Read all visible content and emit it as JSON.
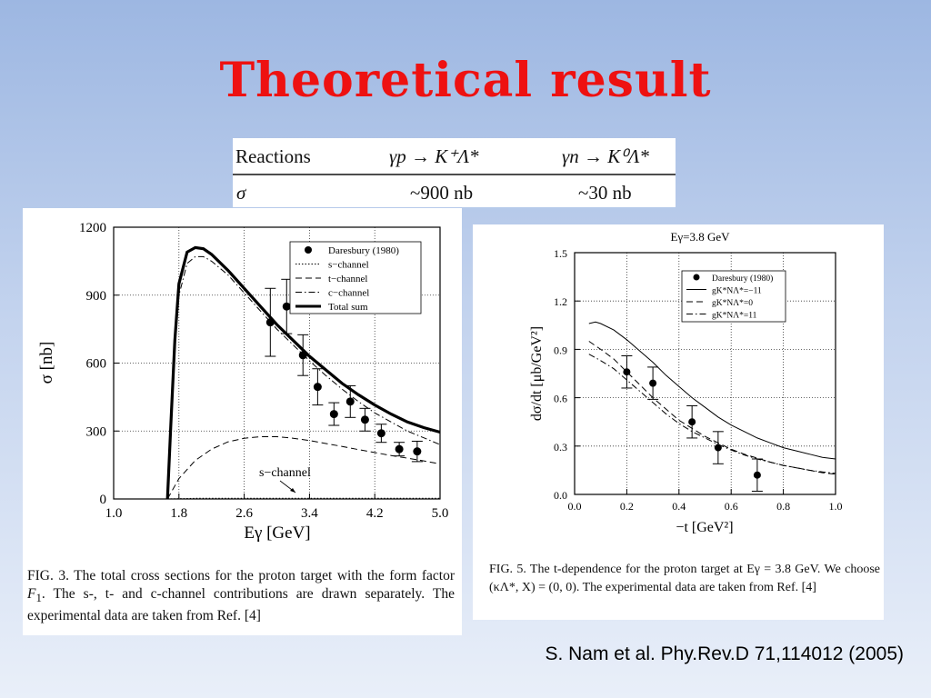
{
  "slide_title": "Theoretical result",
  "citation": "S. Nam et al. Phy.Rev.D 71,114012 (2005)",
  "table": {
    "header": [
      "Reactions",
      "γp → K⁺Λ*",
      "γn → K⁰Λ*"
    ],
    "row": [
      "σ",
      "~900 nb",
      "~30 nb"
    ]
  },
  "caption_left": {
    "part1": "FIG. 3.   The total cross sections for the proton target with the form factor ",
    "part2": "F",
    "part3": "1",
    "part4": ". The s-, t- and c-channel contributions are drawn separately. The experimental data are taken from Ref. [4]"
  },
  "caption_right": {
    "part1": "FIG. 5.  The  t-dependence  for  the  proton  target  at ",
    "part2": "Eγ = 3.8 GeV. We choose (κΛ*, X) = (0, 0). The experimental data are taken from Ref. [4]"
  },
  "chart_data": [
    {
      "type": "line",
      "xlabel": "Eγ [GeV]",
      "ylabel": "σ [nb]",
      "xlim": [
        1.0,
        5.0
      ],
      "ylim": [
        0,
        1200
      ],
      "xticks": [
        "1.0",
        "1.8",
        "2.6",
        "3.4",
        "4.2",
        "5.0"
      ],
      "yticks": [
        "0",
        "300",
        "600",
        "900",
        "1200"
      ],
      "grid": true,
      "legend_position": "top-right",
      "annotation": "s−channel",
      "series": [
        {
          "name": "Total sum",
          "style": "thick-solid",
          "x": [
            1.66,
            1.7,
            1.75,
            1.8,
            1.9,
            2.0,
            2.1,
            2.2,
            2.4,
            2.6,
            2.8,
            3.0,
            3.2,
            3.4,
            3.6,
            3.8,
            4.0,
            4.2,
            4.4,
            4.6,
            4.8,
            5.0
          ],
          "y": [
            0,
            320,
            700,
            950,
            1090,
            1110,
            1105,
            1080,
            1010,
            930,
            850,
            770,
            700,
            630,
            570,
            510,
            460,
            415,
            375,
            340,
            315,
            295
          ]
        },
        {
          "name": "c−channel",
          "style": "dash-dot",
          "x": [
            1.66,
            1.7,
            1.75,
            1.8,
            1.9,
            2.0,
            2.1,
            2.2,
            2.4,
            2.6,
            2.8,
            3.0,
            3.2,
            3.4,
            3.6,
            3.8,
            4.0,
            4.2,
            4.4,
            4.6,
            4.8,
            5.0
          ],
          "y": [
            0,
            300,
            660,
            900,
            1040,
            1070,
            1070,
            1050,
            990,
            910,
            830,
            750,
            680,
            610,
            545,
            485,
            430,
            380,
            340,
            300,
            270,
            240
          ]
        },
        {
          "name": "t−channel",
          "style": "dashed",
          "x": [
            1.66,
            1.8,
            2.0,
            2.2,
            2.4,
            2.6,
            2.8,
            3.0,
            3.2,
            3.4,
            3.6,
            3.8,
            4.0,
            4.2,
            4.4,
            4.6,
            4.8,
            5.0
          ],
          "y": [
            0,
            90,
            170,
            220,
            252,
            268,
            275,
            275,
            268,
            258,
            245,
            232,
            218,
            205,
            192,
            180,
            168,
            155
          ]
        },
        {
          "name": "s−channel",
          "style": "dotted",
          "x": [
            1.66,
            2.0,
            3.0,
            4.0,
            5.0
          ],
          "y": [
            0,
            3,
            3,
            3,
            3
          ]
        }
      ],
      "data_points": {
        "name": "Daresbury (1980)",
        "x": [
          2.92,
          3.12,
          3.32,
          3.5,
          3.7,
          3.9,
          4.08,
          4.28,
          4.5,
          4.72
        ],
        "y": [
          780,
          850,
          635,
          495,
          375,
          430,
          350,
          290,
          220,
          210
        ],
        "err": [
          150,
          120,
          90,
          80,
          50,
          70,
          50,
          40,
          30,
          45
        ]
      }
    },
    {
      "type": "line",
      "title": "Eγ=3.8 GeV",
      "xlabel": "−t [GeV²]",
      "ylabel": "dσ/dt [μb/GeV²]",
      "xlim": [
        0.0,
        1.0
      ],
      "ylim": [
        0.0,
        1.5
      ],
      "xticks": [
        "0.0",
        "0.2",
        "0.4",
        "0.6",
        "0.8",
        "1.0"
      ],
      "yticks": [
        "0.0",
        "0.3",
        "0.6",
        "0.9",
        "1.2",
        "1.5"
      ],
      "grid": true,
      "legend_position": "top-right",
      "series": [
        {
          "name": "gK*NΛ*=−11",
          "style": "solid",
          "x": [
            0.055,
            0.08,
            0.1,
            0.15,
            0.2,
            0.25,
            0.3,
            0.35,
            0.4,
            0.45,
            0.5,
            0.55,
            0.6,
            0.65,
            0.7,
            0.75,
            0.8,
            0.85,
            0.9,
            0.95,
            1.0
          ],
          "y": [
            1.06,
            1.07,
            1.06,
            1.02,
            0.96,
            0.89,
            0.82,
            0.74,
            0.67,
            0.6,
            0.54,
            0.48,
            0.43,
            0.39,
            0.35,
            0.32,
            0.29,
            0.27,
            0.25,
            0.23,
            0.22
          ]
        },
        {
          "name": "gK*NΛ*=0",
          "style": "dashed",
          "x": [
            0.055,
            0.1,
            0.15,
            0.2,
            0.25,
            0.3,
            0.35,
            0.4,
            0.45,
            0.5,
            0.55,
            0.6,
            0.65,
            0.7,
            0.75,
            0.8,
            0.85,
            0.9,
            0.95,
            1.0
          ],
          "y": [
            0.95,
            0.9,
            0.84,
            0.76,
            0.68,
            0.6,
            0.53,
            0.46,
            0.41,
            0.36,
            0.32,
            0.28,
            0.25,
            0.225,
            0.2,
            0.18,
            0.165,
            0.15,
            0.135,
            0.125
          ]
        },
        {
          "name": "gK*NΛ*=11",
          "style": "dash-dot",
          "x": [
            0.055,
            0.1,
            0.15,
            0.2,
            0.25,
            0.3,
            0.35,
            0.4,
            0.45,
            0.5,
            0.55,
            0.6,
            0.65,
            0.7,
            0.75,
            0.8,
            0.85,
            0.9,
            0.95,
            1.0
          ],
          "y": [
            0.87,
            0.83,
            0.78,
            0.71,
            0.64,
            0.57,
            0.5,
            0.44,
            0.39,
            0.35,
            0.31,
            0.275,
            0.245,
            0.22,
            0.2,
            0.18,
            0.165,
            0.15,
            0.14,
            0.13
          ]
        }
      ],
      "data_points": {
        "name": "Daresbury (1980)",
        "x": [
          0.2,
          0.3,
          0.45,
          0.55,
          0.7
        ],
        "y": [
          0.76,
          0.69,
          0.45,
          0.29,
          0.12
        ],
        "err": [
          0.1,
          0.1,
          0.1,
          0.1,
          0.1
        ]
      }
    }
  ]
}
